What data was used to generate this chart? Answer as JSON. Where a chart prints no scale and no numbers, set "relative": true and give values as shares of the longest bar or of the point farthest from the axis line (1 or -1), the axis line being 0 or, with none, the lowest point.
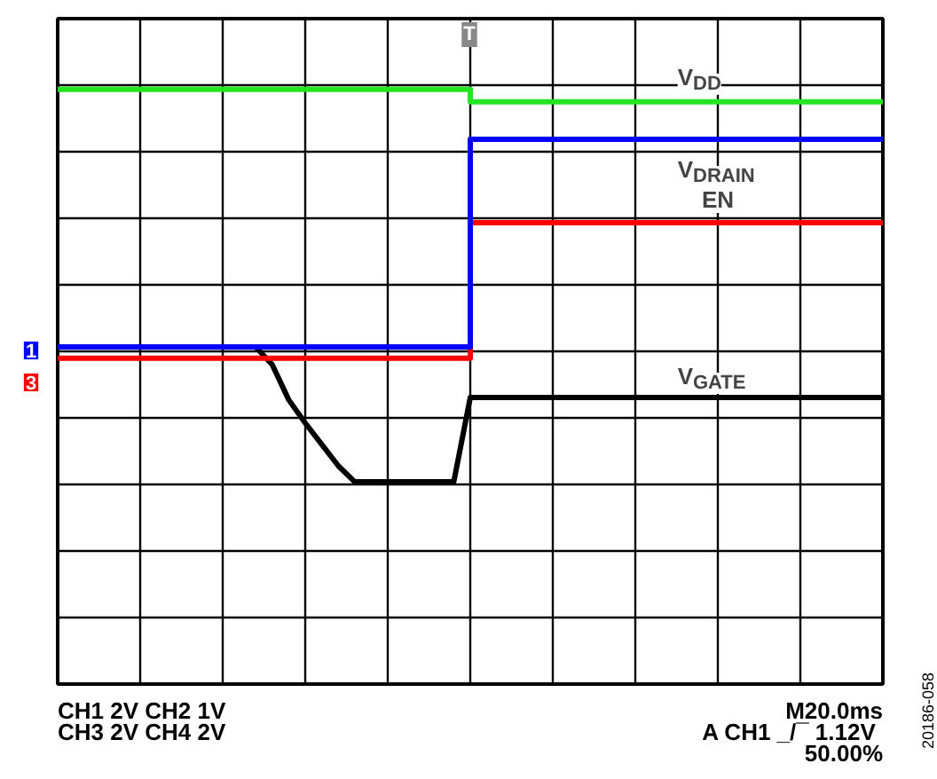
{
  "chart_data": {
    "type": "line",
    "relative": true,
    "grid": true,
    "legend": false,
    "tick_labels": false,
    "categories": [
      null,
      null,
      null,
      null,
      null,
      null,
      null,
      null,
      null,
      null,
      null,
      null,
      null,
      null,
      null,
      null,
      null,
      null,
      null,
      null,
      null,
      null,
      null,
      null,
      null,
      null,
      null,
      null,
      null,
      null,
      null,
      null,
      null,
      null,
      null,
      null,
      null,
      null,
      null,
      null,
      null,
      null,
      null,
      null,
      null,
      null,
      null,
      null,
      null,
      null,
      null
    ],
    "series": [
      {
        "name": "V$_{DD}$",
        "type": "step",
        "color": "#22e622",
        "values": [
          1.0,
          1.0,
          1.0,
          1.0,
          1.0,
          1.0,
          1.0,
          1.0,
          1.0,
          1.0,
          1.0,
          1.0,
          1.0,
          1.0,
          1.0,
          1.0,
          1.0,
          1.0,
          1.0,
          1.0,
          1.0,
          1.0,
          1.0,
          1.0,
          1.0,
          0.979,
          0.979,
          0.979,
          0.979,
          0.979,
          0.979,
          0.979,
          0.979,
          0.979,
          0.979,
          0.979,
          0.979,
          0.979,
          0.979,
          0.979,
          0.979,
          0.979,
          0.979,
          0.979,
          0.979,
          0.979,
          0.979,
          0.979,
          0.979,
          0.979,
          0.979
        ]
      },
      {
        "name": "V$_{DRAIN}$",
        "type": "step",
        "color": "#0000ff",
        "values": [
          0.567,
          0.567,
          0.567,
          0.567,
          0.567,
          0.567,
          0.567,
          0.567,
          0.567,
          0.567,
          0.567,
          0.567,
          0.567,
          0.567,
          0.567,
          0.567,
          0.567,
          0.567,
          0.567,
          0.567,
          0.567,
          0.567,
          0.567,
          0.567,
          0.567,
          0.916,
          0.916,
          0.916,
          0.916,
          0.916,
          0.916,
          0.916,
          0.916,
          0.916,
          0.916,
          0.916,
          0.916,
          0.916,
          0.916,
          0.916,
          0.916,
          0.916,
          0.916,
          0.916,
          0.916,
          0.916,
          0.916,
          0.916,
          0.916,
          0.916,
          0.916
        ]
      },
      {
        "name": "EN",
        "type": "step",
        "color": "#ff0000",
        "values": [
          0.548,
          0.548,
          0.548,
          0.548,
          0.548,
          0.548,
          0.548,
          0.548,
          0.548,
          0.548,
          0.548,
          0.548,
          0.548,
          0.548,
          0.548,
          0.548,
          0.548,
          0.548,
          0.548,
          0.548,
          0.548,
          0.548,
          0.548,
          0.548,
          0.548,
          0.776,
          0.776,
          0.776,
          0.776,
          0.776,
          0.776,
          0.776,
          0.776,
          0.776,
          0.776,
          0.776,
          0.776,
          0.776,
          0.776,
          0.776,
          0.776,
          0.776,
          0.776,
          0.776,
          0.776,
          0.776,
          0.776,
          0.776,
          0.776,
          0.776,
          0.776
        ]
      },
      {
        "name": "V$_{GATE}$",
        "color": "#000000",
        "values": [
          0.567,
          0.567,
          0.567,
          0.567,
          0.567,
          0.567,
          0.567,
          0.567,
          0.567,
          0.567,
          0.567,
          0.567,
          0.567,
          0.537,
          0.478,
          0.439,
          0.403,
          0.367,
          0.34,
          0.34,
          0.34,
          0.34,
          0.34,
          0.34,
          0.34,
          0.482,
          0.482,
          0.482,
          0.482,
          0.482,
          0.482,
          0.482,
          0.482,
          0.482,
          0.482,
          0.482,
          0.482,
          0.482,
          0.482,
          0.482,
          0.482,
          0.482,
          0.482,
          0.482,
          0.482,
          0.482,
          0.482,
          0.482,
          0.482,
          0.482,
          0.482
        ]
      }
    ],
    "annotations": [
      "T",
      "CH1  2V  CH2  1V",
      "CH3  2V  CH4  2V",
      "M20.0ms",
      "A  CH1 _/¯ 1.12V",
      "50.00%",
      "20186-058",
      "1",
      "3"
    ]
  }
}
